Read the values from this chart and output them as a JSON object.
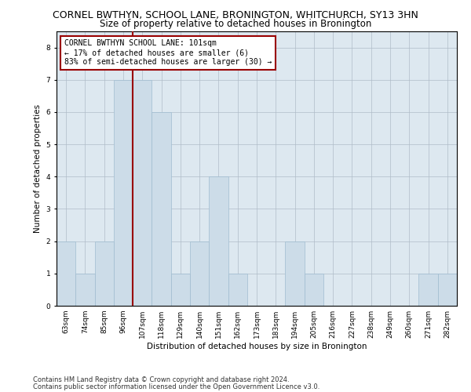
{
  "title": "CORNEL BWTHYN, SCHOOL LANE, BRONINGTON, WHITCHURCH, SY13 3HN",
  "subtitle": "Size of property relative to detached houses in Bronington",
  "xlabel": "Distribution of detached houses by size in Bronington",
  "ylabel": "Number of detached properties",
  "bar_labels": [
    "63sqm",
    "74sqm",
    "85sqm",
    "96sqm",
    "107sqm",
    "118sqm",
    "129sqm",
    "140sqm",
    "151sqm",
    "162sqm",
    "173sqm",
    "183sqm",
    "194sqm",
    "205sqm",
    "216sqm",
    "227sqm",
    "238sqm",
    "249sqm",
    "260sqm",
    "271sqm",
    "282sqm"
  ],
  "bar_values": [
    2,
    1,
    2,
    7,
    7,
    6,
    1,
    2,
    4,
    1,
    0,
    0,
    2,
    1,
    0,
    0,
    0,
    0,
    0,
    1,
    1
  ],
  "bar_color": "#ccdce8",
  "bar_edge_color": "#a0bcd0",
  "vline_x": 3.5,
  "vline_color": "#990000",
  "annotation_line1": "CORNEL BWTHYN SCHOOL LANE: 101sqm",
  "annotation_line2": "← 17% of detached houses are smaller (6)",
  "annotation_line3": "83% of semi-detached houses are larger (30) →",
  "annotation_box_color": "#990000",
  "ylim": [
    0,
    8.5
  ],
  "yticks": [
    0,
    1,
    2,
    3,
    4,
    5,
    6,
    7,
    8
  ],
  "footer_line1": "Contains HM Land Registry data © Crown copyright and database right 2024.",
  "footer_line2": "Contains public sector information licensed under the Open Government Licence v3.0.",
  "background_color": "#ffffff",
  "plot_bg_color": "#dde8f0",
  "grid_color": "#b0bcc8",
  "title_fontsize": 9,
  "subtitle_fontsize": 8.5,
  "axis_label_fontsize": 7.5,
  "tick_fontsize": 6.5,
  "annotation_fontsize": 7,
  "footer_fontsize": 6
}
